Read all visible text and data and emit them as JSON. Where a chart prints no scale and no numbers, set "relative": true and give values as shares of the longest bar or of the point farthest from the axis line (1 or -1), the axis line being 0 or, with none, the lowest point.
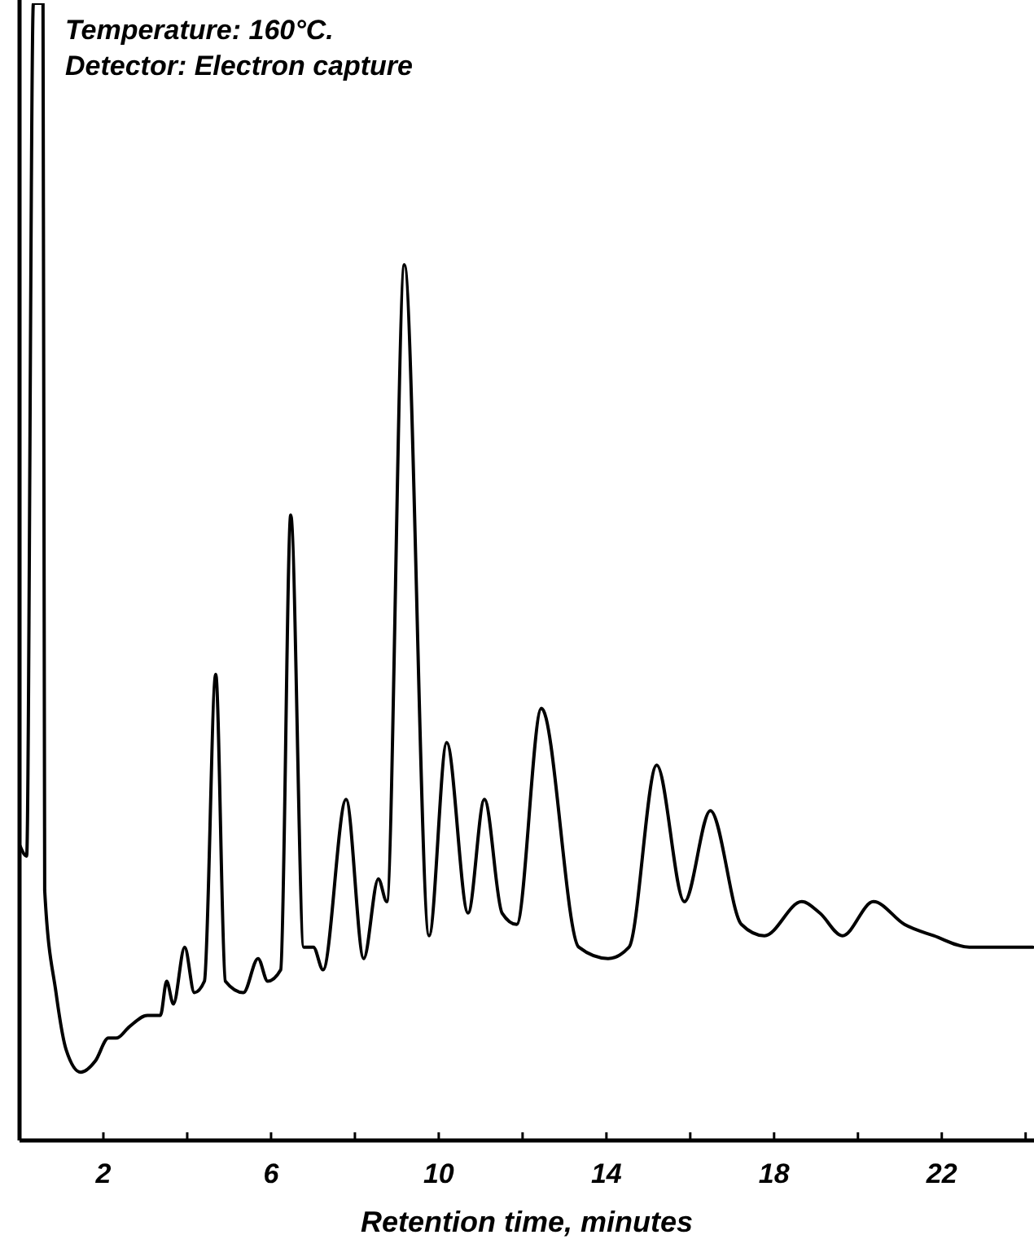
{
  "chart_data": {
    "type": "line",
    "relative": true,
    "xlabel": "Retention time, minutes",
    "xlim": [
      0,
      24.2
    ],
    "xticks": [
      2,
      {
        "value": 4,
        "label": null
      },
      6,
      {
        "value": 8,
        "label": null
      },
      10,
      {
        "value": 12,
        "label": null
      },
      14,
      {
        "value": 16,
        "label": null
      },
      18,
      {
        "value": 20,
        "label": null
      },
      22,
      {
        "value": 24,
        "label": null
      }
    ],
    "annotations": [
      "Temperature: 160°C.",
      "Detector: Electron capture"
    ],
    "grid": false,
    "marker": "none",
    "line_style": "solid",
    "series": [
      {
        "color": "#000000",
        "x": [
          0,
          0.17,
          0.33,
          0.56,
          0.6,
          0.87,
          1.11,
          1.46,
          1.81,
          2.12,
          2.31,
          2.62,
          3.05,
          3.36,
          3.51,
          3.67,
          3.94,
          4.17,
          4.41,
          4.68,
          4.91,
          5.34,
          5.69,
          5.92,
          6.23,
          6.47,
          6.78,
          7.01,
          7.24,
          7.79,
          8.21,
          8.56,
          8.76,
          9.18,
          9.77,
          10.19,
          10.7,
          11.09,
          11.51,
          11.86,
          12.45,
          13.34,
          14.04,
          14.54,
          15.2,
          15.86,
          16.48,
          17.22,
          17.77,
          18.66,
          19.09,
          19.63,
          20.37,
          21.11,
          21.81,
          22.66,
          23.67,
          24.17
        ],
        "values": [
          0.26,
          0.25,
          1,
          1,
          0.22,
          0.13,
          0.08,
          0.06,
          0.07,
          0.09,
          0.09,
          0.1,
          0.11,
          0.11,
          0.14,
          0.12,
          0.17,
          0.13,
          0.14,
          0.41,
          0.14,
          0.13,
          0.16,
          0.14,
          0.15,
          0.55,
          0.17,
          0.17,
          0.15,
          0.3,
          0.16,
          0.23,
          0.21,
          0.77,
          0.18,
          0.35,
          0.2,
          0.3,
          0.2,
          0.19,
          0.38,
          0.17,
          0.16,
          0.17,
          0.33,
          0.21,
          0.29,
          0.19,
          0.18,
          0.21,
          0.2,
          0.18,
          0.21,
          0.19,
          0.18,
          0.17,
          0.17,
          0.17
        ]
      }
    ]
  }
}
